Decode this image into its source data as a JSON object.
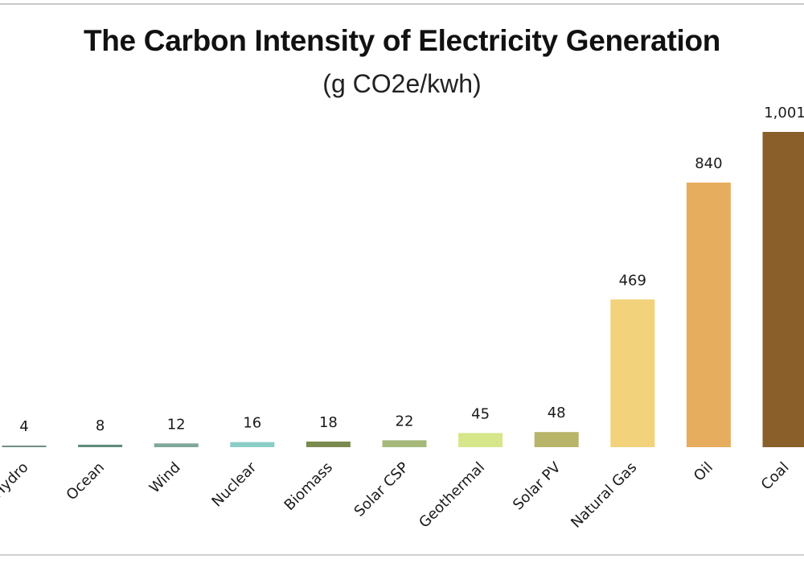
{
  "chart_data": {
    "type": "bar",
    "title": "The Carbon Intensity of Electricity Generation",
    "subtitle": "(g CO2e/kwh)",
    "categories": [
      "Hydro",
      "Ocean",
      "Wind",
      "Nuclear",
      "Biomass",
      "Solar CSP",
      "Geothermal",
      "Solar PV",
      "Natural Gas",
      "Oil",
      "Coal"
    ],
    "values": [
      4,
      8,
      12,
      16,
      18,
      22,
      45,
      48,
      469,
      840,
      1001
    ],
    "value_labels": [
      "4",
      "8",
      "12",
      "16",
      "18",
      "22",
      "45",
      "48",
      "469",
      "840",
      "1,001"
    ],
    "colors": [
      "#6e8f86",
      "#5f8a7a",
      "#7fa79b",
      "#8ccdc7",
      "#7b8b4f",
      "#a6b97b",
      "#d6e68b",
      "#b8b56a",
      "#f2d27a",
      "#e6ad5e",
      "#8a5f2a"
    ],
    "ylim": [
      0,
      1001
    ],
    "grid": false,
    "legend": "none"
  }
}
